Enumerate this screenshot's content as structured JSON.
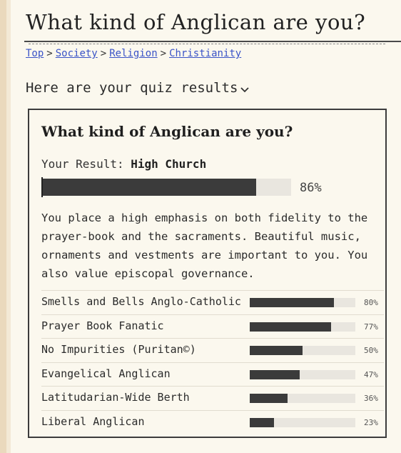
{
  "page": {
    "title": "What kind of Anglican are you?"
  },
  "breadcrumb": {
    "items": [
      "Top",
      "Society",
      "Religion",
      "Christianity"
    ],
    "separator": ">"
  },
  "results_toggle": {
    "label": "Here are your quiz results",
    "icon": "chevron-down-icon"
  },
  "card": {
    "title": "What kind of Anglican are you?",
    "result_label": "Your Result:",
    "result_value": "High Church",
    "percent": 86,
    "percent_label": "86%",
    "description": "You place a high emphasis on both fidelity to the prayer-book and the sacraments. Beautiful music, ornaments and vestments are important to you. You also value episcopal governance."
  },
  "other_results": [
    {
      "label": "Smells and Bells Anglo-Catholic",
      "percent": 80,
      "percent_label": "80%"
    },
    {
      "label": "Prayer Book Fanatic",
      "percent": 77,
      "percent_label": "77%"
    },
    {
      "label": "No Impurities (Puritan©)",
      "percent": 50,
      "percent_label": "50%"
    },
    {
      "label": "Evangelical Anglican",
      "percent": 47,
      "percent_label": "47%"
    },
    {
      "label": "Latitudarian-Wide Berth",
      "percent": 36,
      "percent_label": "36%"
    },
    {
      "label": "Liberal Anglican",
      "percent": 23,
      "percent_label": "23%"
    }
  ],
  "colors": {
    "background": "#fbf8ee",
    "bar_fill": "#3b3b3b",
    "bar_track": "#e9e6df",
    "link": "#3a53c7"
  }
}
